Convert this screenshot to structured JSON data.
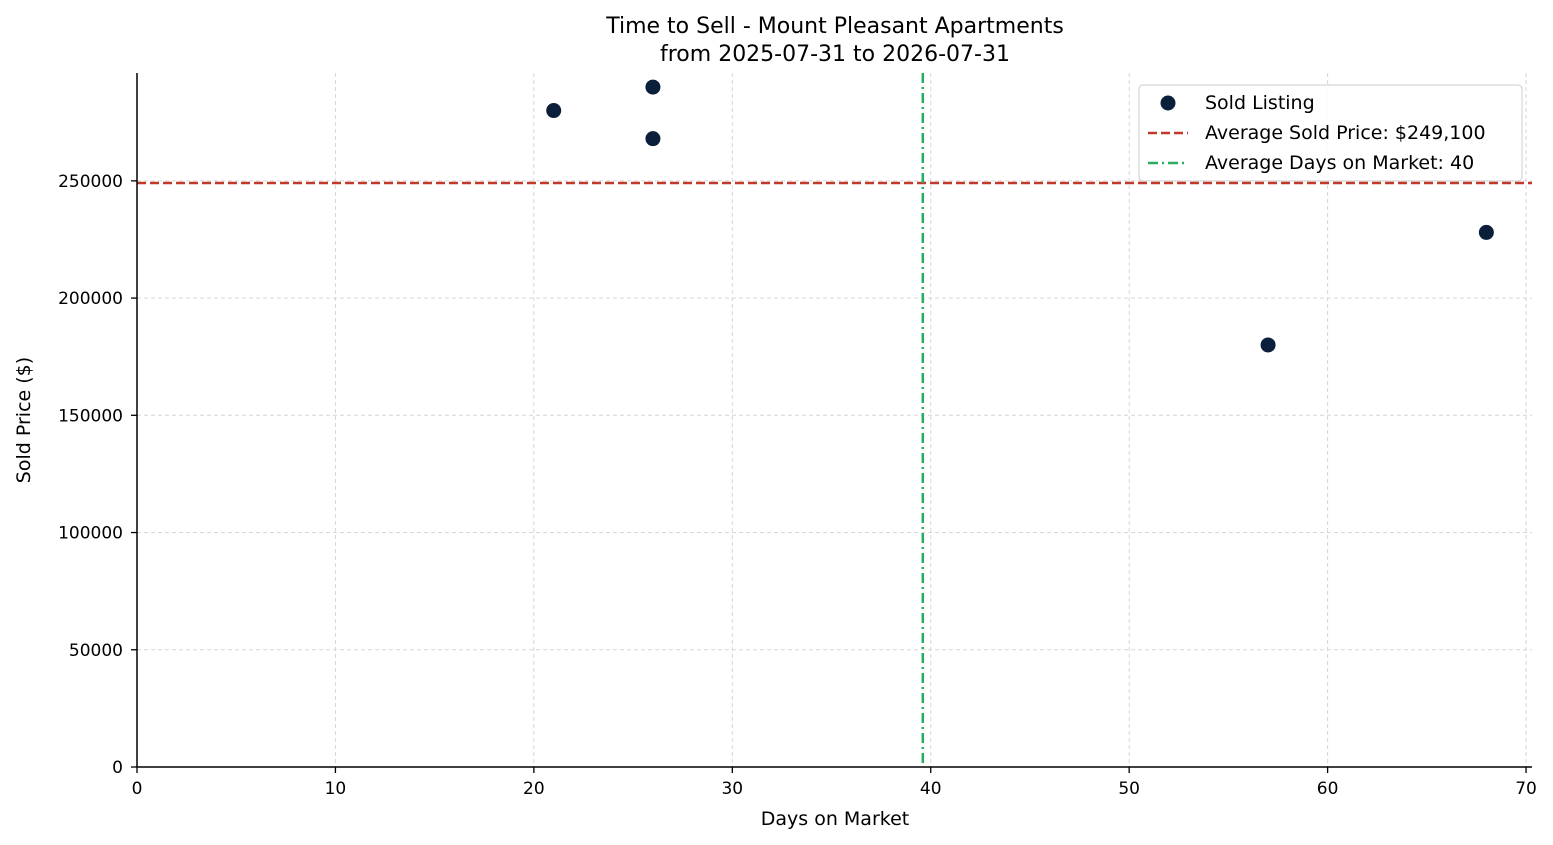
{
  "chart_data": {
    "type": "scatter",
    "title": "Time to Sell - Mount Pleasant Apartments",
    "subtitle": "from 2025-07-31 to 2026-07-31",
    "xlabel": "Days on Market",
    "ylabel": "Sold Price ($)",
    "xlim": [
      0,
      70.3
    ],
    "ylim": [
      0,
      296000
    ],
    "xticks": [
      0,
      10,
      20,
      30,
      40,
      50,
      60,
      70
    ],
    "xtick_labels": [
      "0",
      "10",
      "20",
      "30",
      "40",
      "50",
      "60",
      "70"
    ],
    "yticks": [
      0,
      50000,
      100000,
      150000,
      200000,
      250000
    ],
    "ytick_labels": [
      "0",
      "50000",
      "100000",
      "150000",
      "200000",
      "250000"
    ],
    "grid": true,
    "legend_position": "top-right",
    "series": [
      {
        "name": "Sold Listing",
        "color": "#0b1f3a",
        "x": [
          21,
          26,
          26,
          57,
          68
        ],
        "y": [
          280000,
          290000,
          268000,
          180000,
          228000
        ]
      }
    ],
    "reference_lines": [
      {
        "name": "Average Sold Price: $249,100",
        "orientation": "horizontal",
        "value": 249100,
        "color": "#c0392b",
        "style": "dashed"
      },
      {
        "name": "Average Days on Market: 40",
        "orientation": "vertical",
        "value": 39.6,
        "color": "#27ae60",
        "style": "dashdot"
      }
    ]
  }
}
